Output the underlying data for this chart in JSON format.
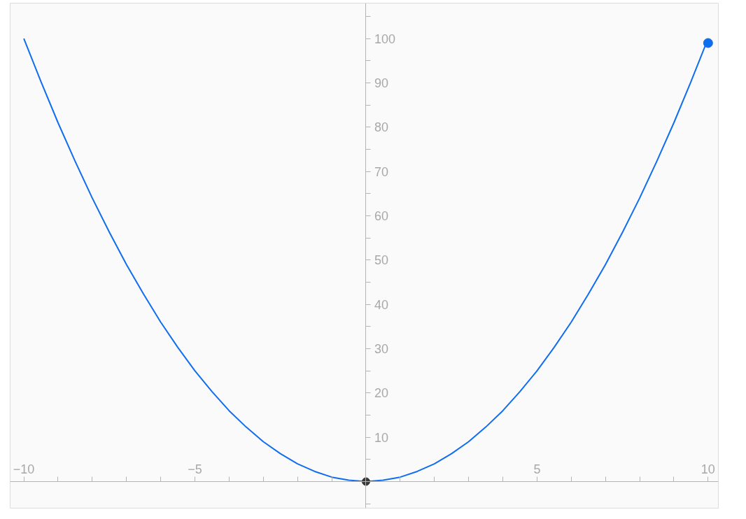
{
  "chart_data": {
    "type": "line",
    "series": [
      {
        "color": "#0f6ef0",
        "x": [
          -10,
          -9.5,
          -9,
          -8.5,
          -8,
          -7.5,
          -7,
          -6.5,
          -6,
          -5.5,
          -5,
          -4.5,
          -4,
          -3.5,
          -3,
          -2.5,
          -2,
          -1.5,
          -1,
          -0.5,
          0,
          0.5,
          1,
          1.5,
          2,
          2.5,
          3,
          3.5,
          4,
          4.5,
          5,
          5.5,
          6,
          6.5,
          7,
          7.5,
          8,
          8.5,
          9,
          9.5,
          10
        ],
        "values": [
          100,
          90.3,
          81,
          72.3,
          64,
          56.3,
          49,
          42.3,
          36,
          30.3,
          25,
          20.3,
          16,
          12.3,
          9,
          6.3,
          4,
          2.3,
          1,
          0.3,
          0,
          0.3,
          1,
          2.3,
          4,
          6.3,
          9,
          12.3,
          16,
          20.3,
          25,
          30.3,
          36,
          42.3,
          49,
          56.3,
          64,
          72.3,
          81,
          90.3,
          100
        ]
      },
      {
        "type": "scatter",
        "marker": "circle",
        "color": "#0f6ef0",
        "x": [
          10
        ],
        "values": [
          99
        ]
      },
      {
        "type": "scatter",
        "marker": "circle",
        "color": "#3a3a3a",
        "x": [
          0
        ],
        "values": [
          0
        ]
      }
    ],
    "xlim": [
      -10.4,
      10.3
    ],
    "ylim": [
      -6,
      108
    ],
    "xticks": [
      {
        "value": -10,
        "label": "−10"
      },
      {
        "value": -9,
        "label": null
      },
      {
        "value": -8,
        "label": null
      },
      {
        "value": -7,
        "label": null
      },
      {
        "value": -6,
        "label": null
      },
      {
        "value": -5,
        "label": "−5"
      },
      {
        "value": -4,
        "label": null
      },
      {
        "value": -3,
        "label": null
      },
      {
        "value": -2,
        "label": null
      },
      {
        "value": -1,
        "label": null
      },
      {
        "value": 1,
        "label": null
      },
      {
        "value": 2,
        "label": null
      },
      {
        "value": 3,
        "label": null
      },
      {
        "value": 4,
        "label": null
      },
      {
        "value": 5,
        "label": "5"
      },
      {
        "value": 6,
        "label": null
      },
      {
        "value": 7,
        "label": null
      },
      {
        "value": 8,
        "label": null
      },
      {
        "value": 9,
        "label": null
      },
      {
        "value": 10,
        "label": "10"
      }
    ],
    "yticks": [
      {
        "value": -5,
        "label": null
      },
      {
        "value": 5,
        "label": null
      },
      10,
      {
        "value": 15,
        "label": null
      },
      20,
      {
        "value": 25,
        "label": null
      },
      30,
      {
        "value": 35,
        "label": null
      },
      40,
      {
        "value": 45,
        "label": null
      },
      50,
      {
        "value": 55,
        "label": null
      },
      60,
      {
        "value": 65,
        "label": null
      },
      70,
      {
        "value": 75,
        "label": null
      },
      80,
      {
        "value": 85,
        "label": null
      },
      90,
      {
        "value": 95,
        "label": null
      },
      100,
      {
        "value": 105,
        "label": null
      }
    ],
    "grid": false,
    "marker": "none",
    "line_style": "solid"
  }
}
